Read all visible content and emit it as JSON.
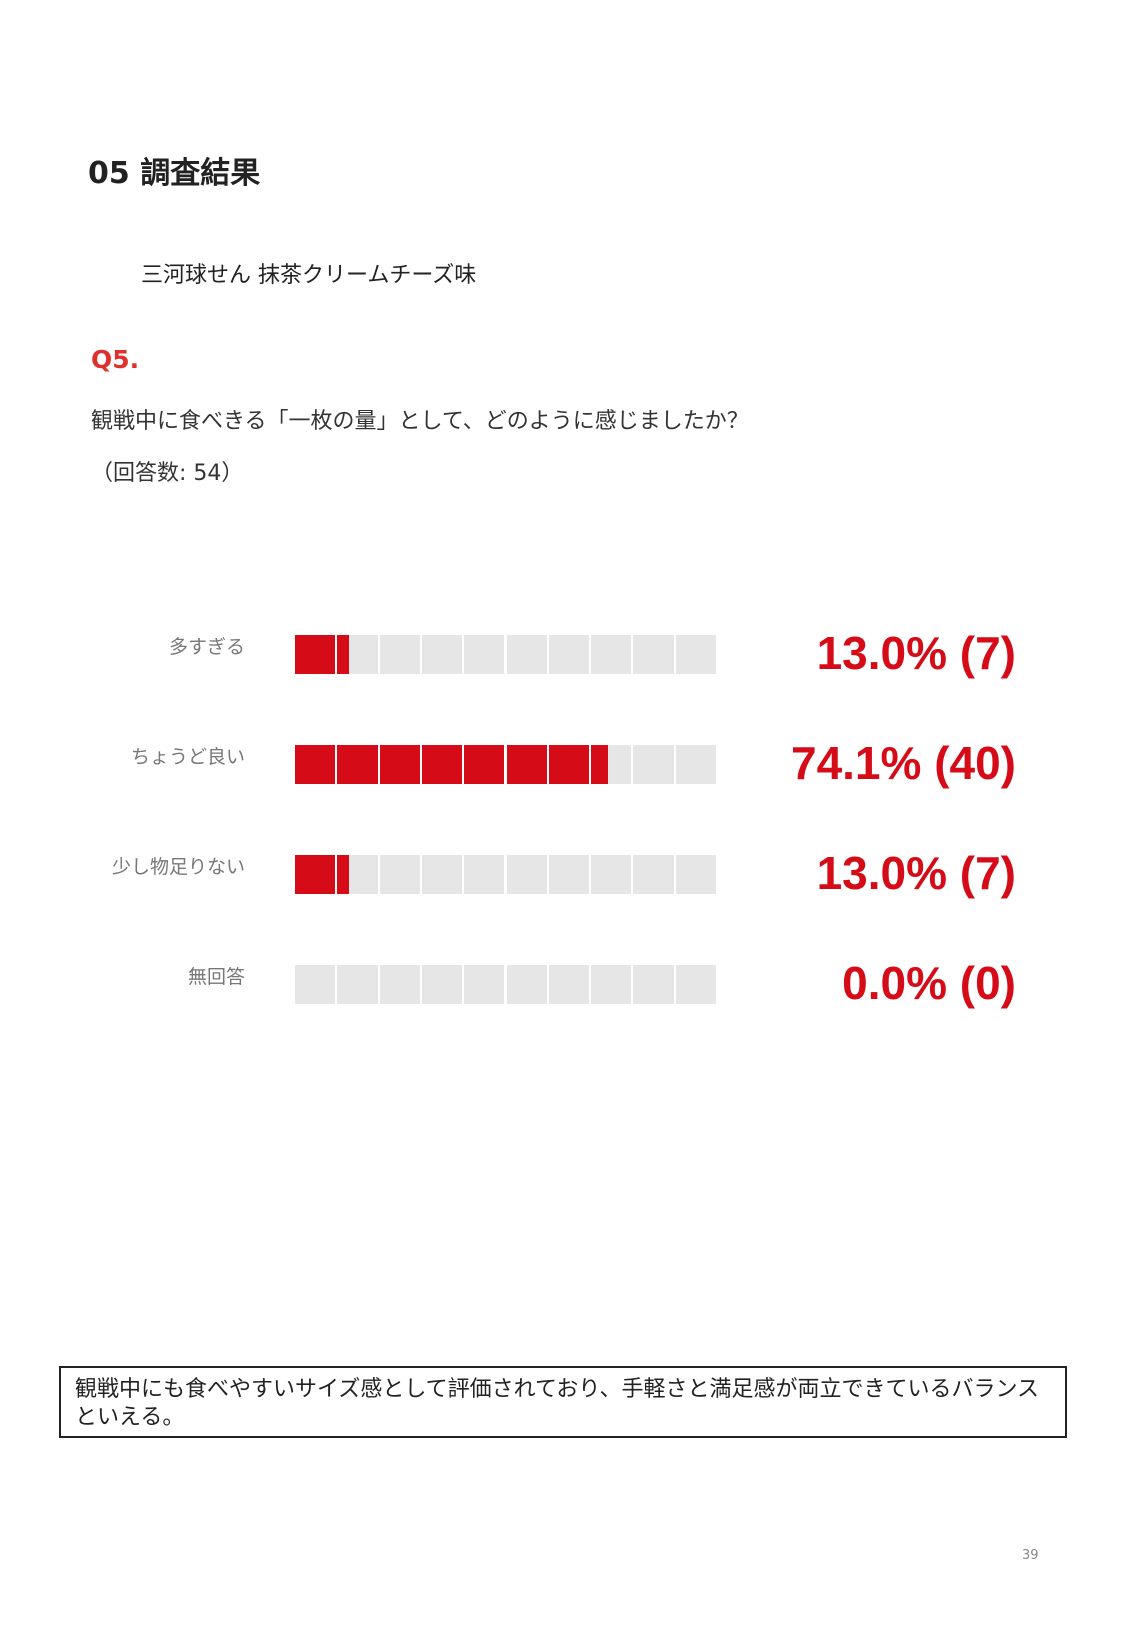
{
  "header": {
    "title": "05  調査結果",
    "subtitle": "三河球せん  抹茶クリームチーズ味"
  },
  "question": {
    "number": "Q5.",
    "text": "観戦中に食べきる「一枚の量」として、どのように感じましたか？",
    "count": "（回答数: 54）"
  },
  "chart_data": {
    "type": "bar",
    "categories": [
      "多すぎる",
      "ちょうど良い",
      "少し物足りない",
      "無回答"
    ],
    "values": [
      13.0,
      74.1,
      13.0,
      0.0
    ],
    "counts": [
      7,
      40,
      7,
      0
    ],
    "value_labels": [
      "13.0% (7)",
      "74.1% (40)",
      "13.0% (7)",
      "0.0% (0)"
    ],
    "xlim": [
      0,
      100
    ],
    "segments": 10,
    "colors": {
      "fill": "#d50c18",
      "empty": "#e6e6e6"
    }
  },
  "note": "観戦中にも食べやすいサイズ感として評価されており、手軽さと満足感が両立できているバランスといえる。",
  "page_number": "39"
}
